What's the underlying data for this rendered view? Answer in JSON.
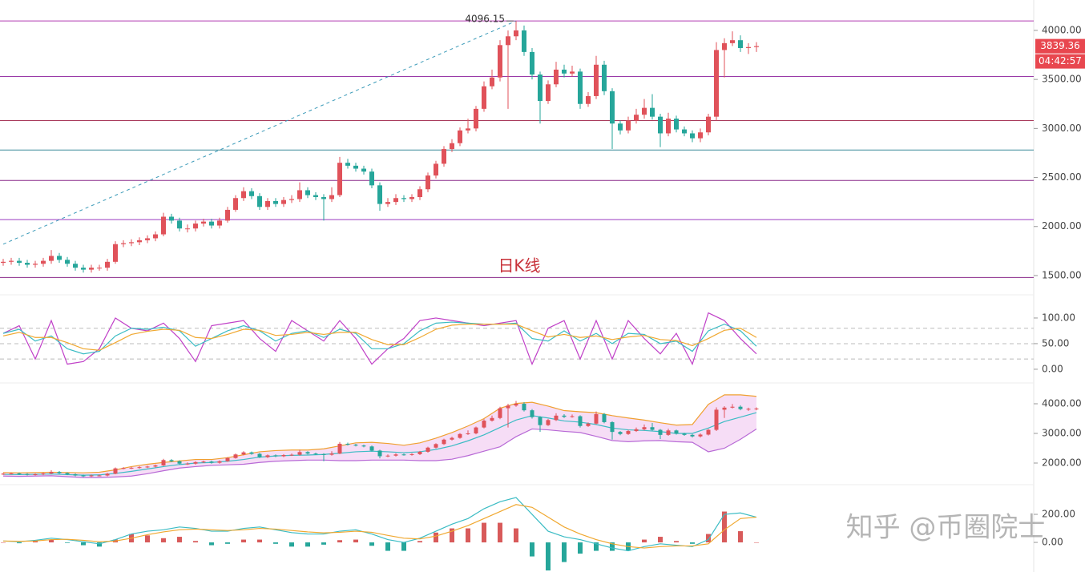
{
  "watermark": "知乎 @币圈院士",
  "chart_data": [
    {
      "type": "candlestick",
      "annotation": "日K线",
      "up_color": "#e0525a",
      "down_color": "#26a69a",
      "ylim": [
        1328,
        4310
      ],
      "yticks": [
        {
          "value": 1500,
          "label": "1500.00"
        },
        {
          "value": 2000,
          "label": "2000.00"
        },
        {
          "value": 2500,
          "label": "2500.00"
        },
        {
          "value": 3000,
          "label": "3000.00"
        },
        {
          "value": 3500,
          "label": "3500.00"
        },
        {
          "value": 4000,
          "label": "4000.00"
        }
      ],
      "hlines": [
        {
          "value": 4096.15,
          "color": "#b03ab0"
        },
        {
          "value": 3530,
          "color": "#9a3aa8"
        },
        {
          "value": 3080,
          "color": "#a83a5a"
        },
        {
          "value": 2780,
          "color": "#3a8a9a"
        },
        {
          "value": 2470,
          "color": "#8a2a8a"
        },
        {
          "value": 2070,
          "color": "#9a3ac0"
        },
        {
          "value": 1480,
          "color": "#8a2a8a"
        }
      ],
      "trendline": {
        "x": [
          0,
          64
        ],
        "y": [
          1820,
          4096.15
        ],
        "color": "#3a9ab8"
      },
      "high_label": {
        "value": 4096.15,
        "label": "4096.15"
      },
      "last_price": {
        "value": 3839.36,
        "label": "3839.36"
      },
      "countdown": "04:42:57",
      "open": [
        1630,
        1640,
        1650,
        1630,
        1610,
        1620,
        1650,
        1700,
        1660,
        1620,
        1580,
        1560,
        1580,
        1580,
        1640,
        1820,
        1830,
        1840,
        1860,
        1880,
        1920,
        2100,
        2060,
        1980,
        1980,
        2030,
        2050,
        2010,
        2060,
        2170,
        2290,
        2360,
        2310,
        2200,
        2260,
        2230,
        2270,
        2280,
        2370,
        2320,
        2300,
        2280,
        2320,
        2650,
        2620,
        2590,
        2560,
        2420,
        2230,
        2250,
        2290,
        2280,
        2300,
        2380,
        2520,
        2640,
        2790,
        2850,
        2980,
        3000,
        3200,
        3430,
        3520,
        3850,
        3940,
        4000,
        3780,
        3550,
        3280,
        3450,
        3600,
        3560,
        3580,
        3250,
        3330,
        3650,
        3380,
        3050,
        2980,
        3080,
        3140,
        3210,
        3120,
        2950,
        3100,
        2990,
        2950,
        2900,
        2960,
        3120,
        3800,
        3870,
        3900,
        3820,
        3830
      ],
      "high": [
        1670,
        1680,
        1680,
        1660,
        1650,
        1680,
        1760,
        1730,
        1690,
        1650,
        1610,
        1610,
        1610,
        1670,
        1850,
        1860,
        1870,
        1890,
        1910,
        1950,
        2140,
        2130,
        2090,
        2020,
        2060,
        2080,
        2080,
        2090,
        2200,
        2320,
        2400,
        2390,
        2340,
        2290,
        2290,
        2300,
        2320,
        2450,
        2400,
        2350,
        2330,
        2400,
        2710,
        2690,
        2650,
        2620,
        2590,
        2450,
        2290,
        2330,
        2320,
        2330,
        2410,
        2550,
        2670,
        2820,
        2890,
        3010,
        3100,
        3230,
        3480,
        3600,
        3900,
        4000,
        4096.15,
        4050,
        3820,
        3580,
        3490,
        3680,
        3650,
        3640,
        3610,
        3370,
        3740,
        3690,
        3410,
        3080,
        3120,
        3200,
        3300,
        3350,
        3150,
        3160,
        3130,
        3020,
        2980,
        3000,
        3150,
        3880,
        3920,
        3990,
        3950,
        3870,
        3880
      ],
      "low": [
        1600,
        1610,
        1600,
        1580,
        1580,
        1590,
        1620,
        1630,
        1590,
        1550,
        1530,
        1530,
        1550,
        1550,
        1620,
        1790,
        1800,
        1810,
        1830,
        1850,
        1900,
        2030,
        1950,
        1940,
        1950,
        2000,
        1980,
        1980,
        2040,
        2150,
        2260,
        2280,
        2170,
        2170,
        2200,
        2200,
        2240,
        2250,
        2290,
        2270,
        2060,
        2250,
        2300,
        2590,
        2560,
        2530,
        2390,
        2160,
        2200,
        2220,
        2250,
        2250,
        2270,
        2350,
        2490,
        2610,
        2760,
        2820,
        2950,
        2970,
        3170,
        3400,
        3480,
        3200,
        3900,
        3740,
        3500,
        3050,
        3250,
        3420,
        3520,
        3530,
        3200,
        3220,
        3300,
        3340,
        2790,
        2940,
        2950,
        3050,
        3100,
        3090,
        2810,
        2920,
        2960,
        2920,
        2860,
        2860,
        2930,
        3080,
        3520,
        3840,
        3780,
        3760,
        3780
      ],
      "close": [
        1640,
        1650,
        1630,
        1610,
        1620,
        1650,
        1700,
        1660,
        1620,
        1580,
        1560,
        1580,
        1580,
        1640,
        1820,
        1830,
        1840,
        1860,
        1880,
        1920,
        2100,
        2060,
        1980,
        1980,
        2030,
        2050,
        2010,
        2060,
        2170,
        2290,
        2360,
        2310,
        2200,
        2260,
        2230,
        2270,
        2280,
        2370,
        2320,
        2300,
        2280,
        2320,
        2650,
        2620,
        2590,
        2560,
        2420,
        2230,
        2250,
        2290,
        2280,
        2300,
        2380,
        2520,
        2640,
        2790,
        2850,
        2980,
        3000,
        3200,
        3430,
        3520,
        3850,
        3940,
        4000,
        3780,
        3550,
        3280,
        3450,
        3600,
        3560,
        3580,
        3250,
        3330,
        3650,
        3380,
        3050,
        2980,
        3080,
        3140,
        3210,
        3120,
        2950,
        3100,
        2990,
        2950,
        2900,
        2960,
        3120,
        3800,
        3870,
        3900,
        3820,
        3830,
        3839.36
      ]
    },
    {
      "type": "line",
      "ylim": [
        -22,
        139
      ],
      "yticks": [
        {
          "value": 0,
          "label": "0.00"
        },
        {
          "value": 50,
          "label": "50.00"
        },
        {
          "value": 100,
          "label": "100.00"
        }
      ],
      "hlines": [
        {
          "value": 80,
          "color": "#bbbbbb",
          "dashed": true
        },
        {
          "value": 50,
          "color": "#bbbbbb",
          "dashed": true
        },
        {
          "value": 20,
          "color": "#bbbbbb",
          "dashed": true
        }
      ],
      "series": [
        {
          "color": "#c040c8",
          "values": [
            70,
            85,
            20,
            95,
            10,
            15,
            40,
            100,
            80,
            75,
            90,
            60,
            15,
            85,
            90,
            95,
            60,
            35,
            95,
            75,
            55,
            95,
            60,
            10,
            40,
            60,
            95,
            100,
            95,
            90,
            85,
            90,
            95,
            10,
            80,
            95,
            20,
            95,
            20,
            95,
            60,
            30,
            70,
            10,
            110,
            95,
            60,
            30
          ]
        },
        {
          "color": "#3bbcc4",
          "values": [
            70,
            78,
            55,
            65,
            40,
            30,
            35,
            65,
            80,
            78,
            82,
            75,
            45,
            60,
            75,
            85,
            75,
            55,
            70,
            75,
            62,
            78,
            70,
            40,
            40,
            50,
            75,
            90,
            92,
            90,
            88,
            88,
            90,
            60,
            55,
            75,
            55,
            70,
            50,
            70,
            68,
            50,
            55,
            35,
            75,
            88,
            75,
            45
          ]
        },
        {
          "color": "#f0a830",
          "values": [
            65,
            72,
            62,
            62,
            52,
            40,
            37,
            52,
            68,
            74,
            78,
            76,
            62,
            60,
            68,
            78,
            76,
            66,
            68,
            72,
            68,
            72,
            72,
            58,
            48,
            48,
            62,
            78,
            86,
            88,
            88,
            88,
            88,
            75,
            63,
            68,
            62,
            65,
            58,
            63,
            66,
            58,
            56,
            46,
            60,
            76,
            80,
            62
          ]
        }
      ]
    },
    {
      "type": "bollinger",
      "ylim": [
        1405,
        4595
      ],
      "yticks": [
        {
          "value": 2000,
          "label": "2000.00"
        },
        {
          "value": 3000,
          "label": "3000.00"
        },
        {
          "value": 4000,
          "label": "4000.00"
        }
      ],
      "fill": "#f4d4f4",
      "series": [
        {
          "color": "#f0a030",
          "values": [
            1680,
            1670,
            1680,
            1690,
            1680,
            1670,
            1690,
            1770,
            1880,
            1960,
            2020,
            2070,
            2120,
            2120,
            2180,
            2280,
            2380,
            2420,
            2440,
            2440,
            2480,
            2580,
            2680,
            2700,
            2660,
            2600,
            2680,
            2840,
            3030,
            3250,
            3500,
            3850,
            4010,
            4050,
            3920,
            3770,
            3730,
            3700,
            3600,
            3520,
            3450,
            3360,
            3280,
            3300,
            3980,
            4300,
            4300,
            4250
          ]
        },
        {
          "color": "#3bbcc4",
          "values": [
            1620,
            1610,
            1620,
            1630,
            1610,
            1590,
            1600,
            1650,
            1720,
            1800,
            1880,
            1950,
            2000,
            2020,
            2060,
            2120,
            2200,
            2240,
            2260,
            2270,
            2290,
            2330,
            2380,
            2400,
            2380,
            2350,
            2380,
            2460,
            2580,
            2750,
            2950,
            3200,
            3450,
            3600,
            3520,
            3420,
            3380,
            3300,
            3180,
            3120,
            3100,
            3060,
            3000,
            3000,
            3180,
            3400,
            3550,
            3700
          ]
        },
        {
          "color": "#b86ad6",
          "values": [
            1560,
            1550,
            1560,
            1570,
            1540,
            1510,
            1510,
            1530,
            1560,
            1640,
            1740,
            1830,
            1880,
            1920,
            1940,
            1960,
            2020,
            2060,
            2080,
            2100,
            2100,
            2080,
            2080,
            2100,
            2100,
            2100,
            2080,
            2080,
            2130,
            2250,
            2400,
            2550,
            2890,
            3150,
            3120,
            3070,
            3030,
            2900,
            2760,
            2720,
            2750,
            2760,
            2720,
            2700,
            2380,
            2500,
            2800,
            3150
          ]
        }
      ]
    },
    {
      "type": "macd",
      "ylim": [
        -211,
        383
      ],
      "yticks": [
        {
          "value": 0,
          "label": "0.00"
        },
        {
          "value": 200,
          "label": "200.00"
        }
      ],
      "up_color": "#d85a5a",
      "down_color": "#26a69a",
      "values": [
        0,
        -6,
        10,
        20,
        -4,
        -20,
        -30,
        20,
        60,
        50,
        30,
        40,
        10,
        -20,
        -10,
        20,
        20,
        -10,
        -30,
        -30,
        -16,
        16,
        20,
        -24,
        -60,
        -60,
        10,
        70,
        100,
        100,
        140,
        140,
        100,
        -100,
        -200,
        -140,
        -80,
        -60,
        -60,
        -60,
        20,
        40,
        10,
        -10,
        60,
        220,
        80,
        0
      ],
      "series": [
        {
          "color": "#3bbcc4",
          "values": [
            10,
            5,
            15,
            30,
            20,
            5,
            -10,
            20,
            60,
            80,
            90,
            110,
            100,
            80,
            80,
            100,
            110,
            90,
            70,
            60,
            60,
            80,
            90,
            60,
            20,
            0,
            30,
            80,
            130,
            170,
            240,
            290,
            320,
            200,
            80,
            40,
            20,
            -10,
            -40,
            -60,
            -30,
            -10,
            -20,
            -30,
            20,
            200,
            210,
            180
          ]
        },
        {
          "color": "#f0a830",
          "values": [
            10,
            8,
            10,
            20,
            22,
            15,
            5,
            10,
            30,
            55,
            75,
            90,
            95,
            90,
            85,
            90,
            100,
            95,
            85,
            75,
            68,
            72,
            80,
            72,
            50,
            30,
            25,
            45,
            80,
            120,
            170,
            220,
            270,
            250,
            180,
            110,
            60,
            20,
            -10,
            -30,
            -40,
            -30,
            -25,
            -25,
            -10,
            90,
            170,
            180
          ]
        }
      ]
    }
  ]
}
